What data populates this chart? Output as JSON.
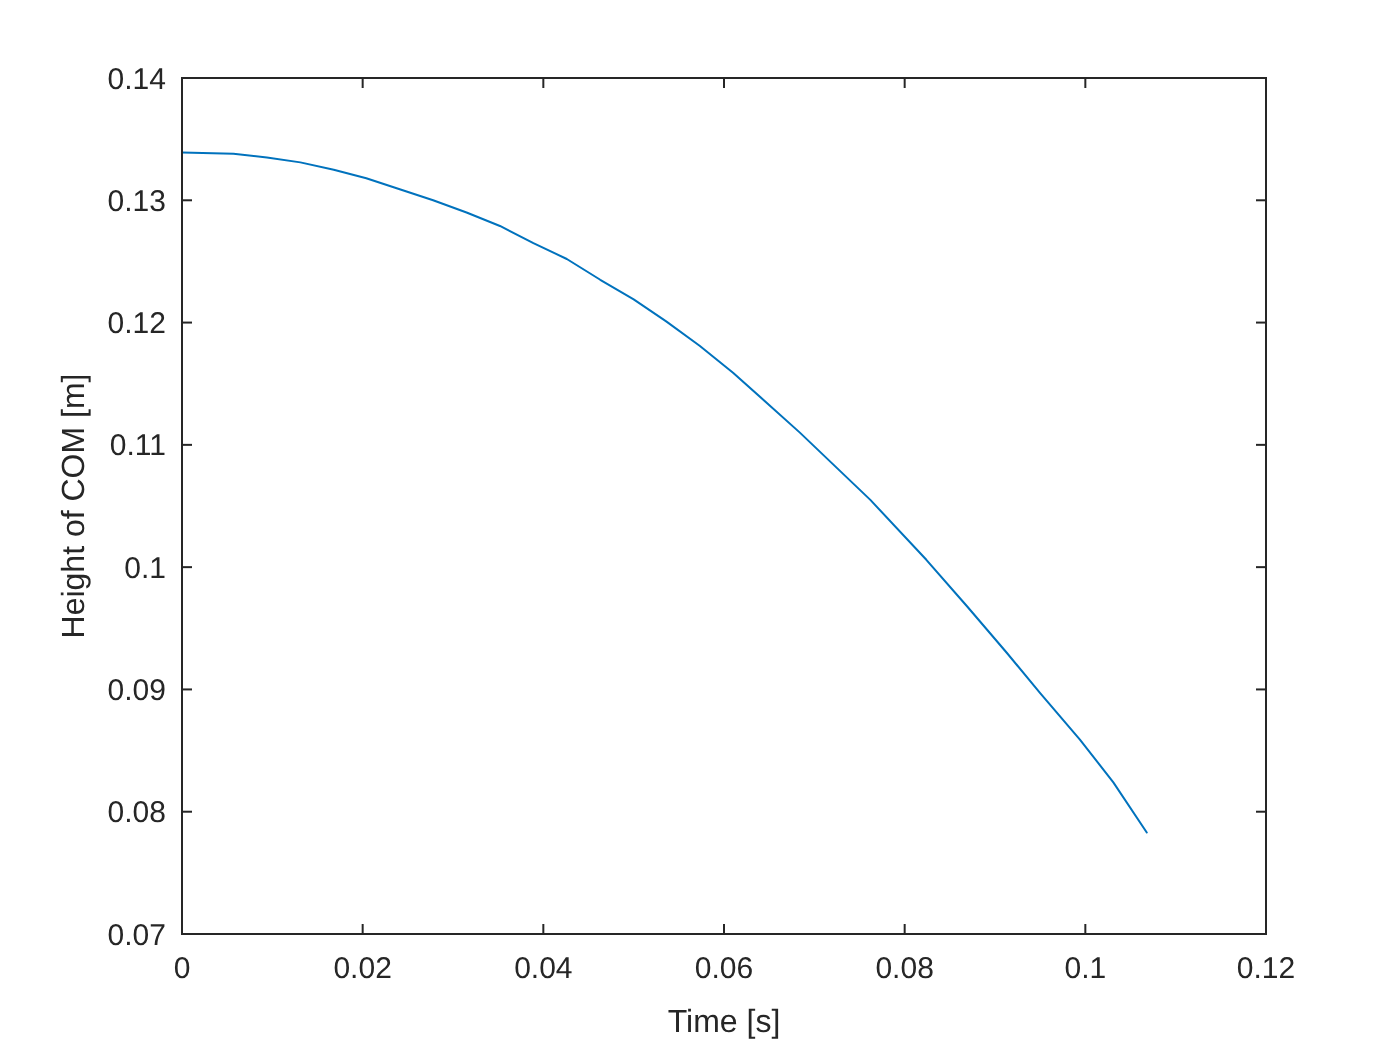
{
  "chart_data": {
    "type": "line",
    "xlabel": "Time [s]",
    "ylabel": "Height of COM [m]",
    "x": [
      0,
      0.0057,
      0.0094,
      0.0131,
      0.0168,
      0.0204,
      0.0241,
      0.0278,
      0.0315,
      0.0352,
      0.0389,
      0.0426,
      0.0463,
      0.05,
      0.0536,
      0.0573,
      0.061,
      0.0684,
      0.0762,
      0.0824,
      0.0869,
      0.0913,
      0.095,
      0.0994,
      0.1031,
      0.1068
    ],
    "series": [
      {
        "color": "#0072bd",
        "values": [
          0.1339,
          0.1338,
          0.1335,
          0.1331,
          0.1325,
          0.1318,
          0.1309,
          0.13,
          0.129,
          0.1279,
          0.1265,
          0.1252,
          0.1235,
          0.1219,
          0.1201,
          0.1181,
          0.1159,
          0.111,
          0.1055,
          0.1006,
          0.0968,
          0.093,
          0.0897,
          0.0859,
          0.0824,
          0.0783
        ]
      }
    ],
    "xlim": [
      0,
      0.12
    ],
    "ylim": [
      0.07,
      0.14
    ],
    "xticks": [
      0,
      0.02,
      0.04,
      0.06,
      0.08,
      0.1,
      0.12
    ],
    "yticks": [
      0.07,
      0.08,
      0.09,
      0.1,
      0.11,
      0.12,
      0.13,
      0.14
    ],
    "line_style": "solid"
  }
}
